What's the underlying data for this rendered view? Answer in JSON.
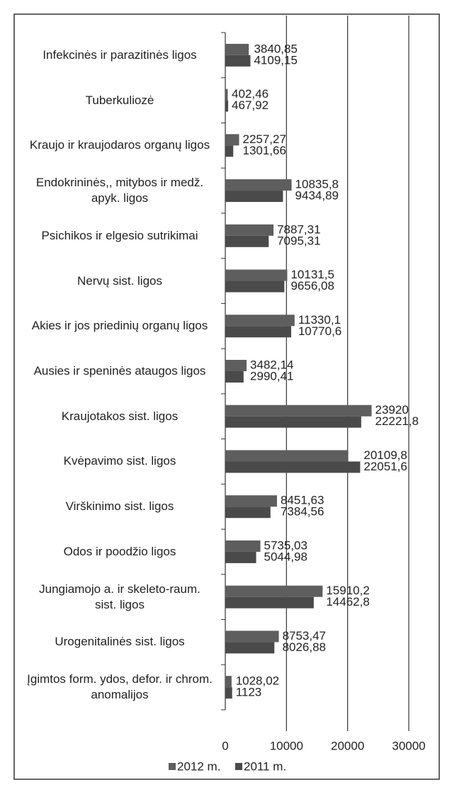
{
  "chart_data": {
    "type": "hbar",
    "categories": [
      "Infekcinės ir parazitinės ligos",
      "Tuberkuliozė",
      "Kraujo ir kraujodaros organų ligos",
      "Endokrininės,, mitybos ir medž. apyk. ligos",
      "Psichikos ir elgesio sutrikimai",
      "Nervų sist. ligos",
      "Akies ir jos priedinių organų ligos",
      "Ausies ir speninės ataugos ligos",
      "Kraujotakos sist. ligos",
      "Kvėpavimo sist. ligos",
      "Virškinimo sist. ligos",
      "Odos ir poodžio ligos",
      "Jungiamojo a. ir skeleto-raum. sist. ligos",
      "Urogenitalinės sist. ligos",
      "Įgimtos form. ydos, defor. ir chrom. anomalijos"
    ],
    "series": [
      {
        "name": "2012 m.",
        "color": "#5e5e5e",
        "values": [
          3840.85,
          402.46,
          2257.27,
          10835.8,
          7887.31,
          10131.5,
          11330.1,
          3482.14,
          23920,
          20109.8,
          8451.63,
          5735.03,
          15910.2,
          8753.47,
          1028.02
        ],
        "value_labels": [
          "3840,85",
          "402,46",
          "2257,27",
          "10835,8",
          "7887,31",
          "10131,5",
          "11330,1",
          "3482,14",
          "23920",
          "20109,8",
          "8451,63",
          "5735,03",
          "15910,2",
          "8753,47",
          "1028,02"
        ]
      },
      {
        "name": "2011 m.",
        "color": "#4a4a4a",
        "values": [
          4109.15,
          467.92,
          1301.66,
          9434.89,
          7095.31,
          9656.08,
          10770.6,
          2990.41,
          22221.8,
          22051.6,
          7384.56,
          5044.98,
          14462.8,
          8026.88,
          1123
        ],
        "value_labels": [
          "4109,15",
          "467,92",
          "1301,66",
          "9434,89",
          "7095,31",
          "9656,08",
          "10770,6",
          "2990,41",
          "22221,8",
          "22051,6",
          "7384,56",
          "5044,98",
          "14462,8",
          "8026,88",
          "1123"
        ]
      }
    ],
    "xlim": [
      0,
      30000
    ],
    "xticks": [
      0,
      10000,
      20000,
      30000
    ],
    "grid": true,
    "legend": "bottom"
  }
}
